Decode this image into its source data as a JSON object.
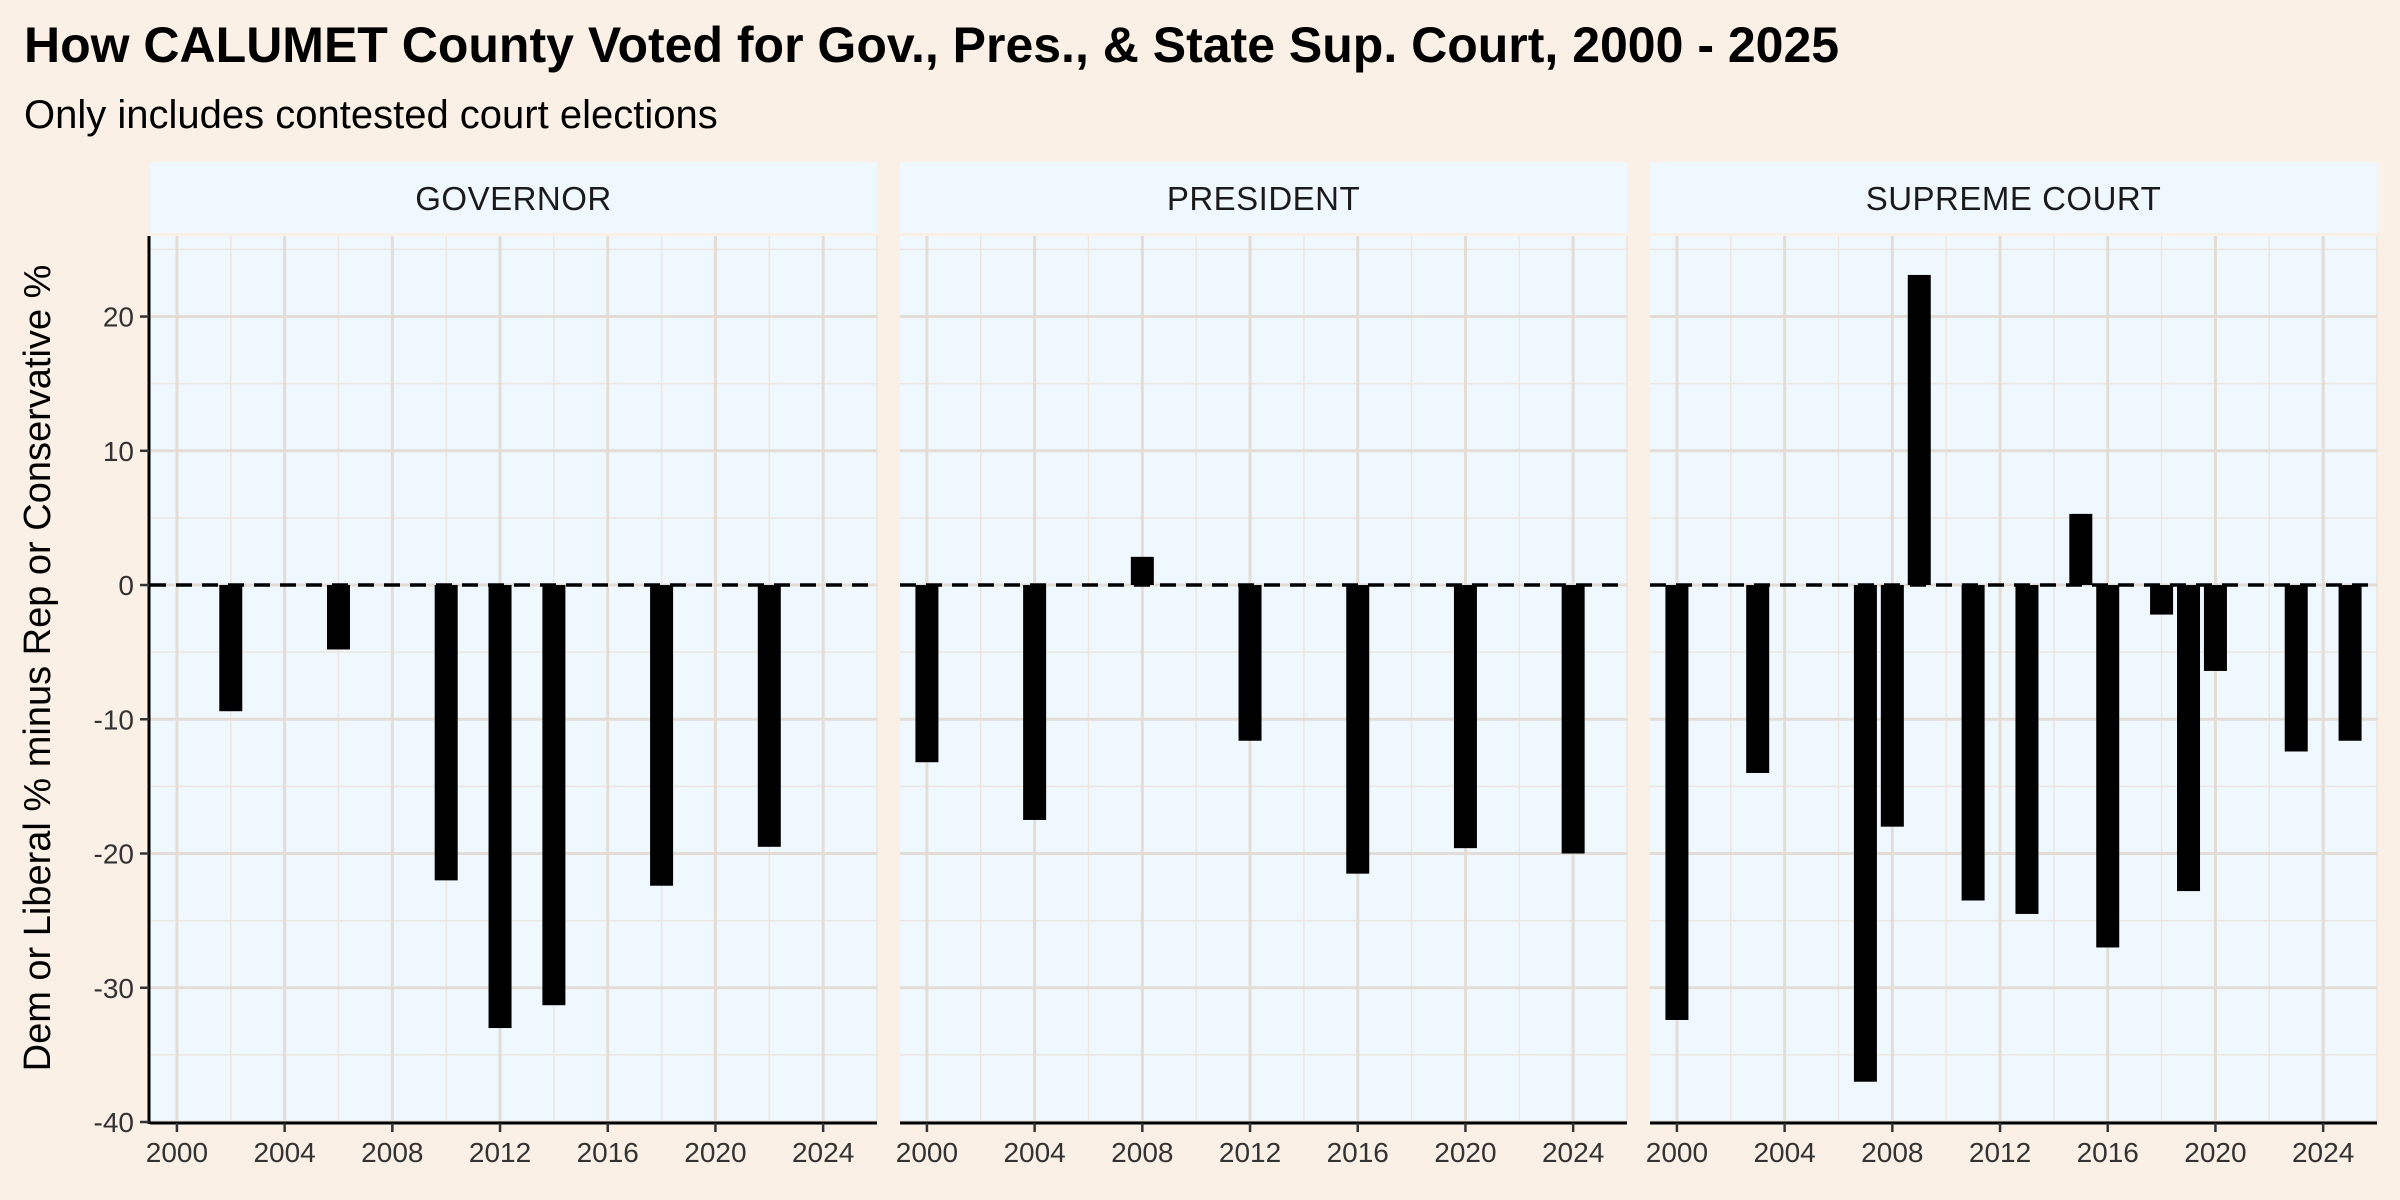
{
  "title": "How CALUMET County Voted for Gov., Pres., & State Sup. Court, 2000 - 2025",
  "subtitle": "Only includes contested court elections",
  "chart_data": {
    "type": "bar",
    "title": "How CALUMET County Voted for Gov., Pres., & State Sup. Court, 2000 - 2025",
    "subtitle": "Only includes contested court elections",
    "ylabel": "Dem or Liberal % minus Rep or Conservative %",
    "xlabel": "",
    "xlim": [
      1999,
      2026
    ],
    "ylim": [
      -40,
      26
    ],
    "x_ticks": [
      2000,
      2004,
      2008,
      2012,
      2016,
      2020,
      2024
    ],
    "y_ticks": [
      -40,
      -30,
      -20,
      -10,
      0,
      10,
      20
    ],
    "reference_line": {
      "y": 0,
      "style": "dashed"
    },
    "grid": true,
    "bar_color": "#000000",
    "panel_background": "#F0F8FF",
    "page_background": "#FBF0E6",
    "panels": [
      {
        "name": "GOVERNOR",
        "x": [
          2002,
          2006,
          2010,
          2012,
          2014,
          2018,
          2022
        ],
        "values": [
          -9.4,
          -4.8,
          -22.0,
          -33.0,
          -31.3,
          -22.4,
          -19.5
        ]
      },
      {
        "name": "PRESIDENT",
        "x": [
          2000,
          2004,
          2008,
          2012,
          2016,
          2020,
          2024
        ],
        "values": [
          -13.2,
          -17.5,
          2.1,
          -11.6,
          -21.5,
          -19.6,
          -20.0
        ]
      },
      {
        "name": "SUPREME COURT",
        "x": [
          2000,
          2003,
          2007,
          2008,
          2009,
          2011,
          2013,
          2015,
          2016,
          2018,
          2019,
          2020,
          2023,
          2025
        ],
        "values": [
          -32.4,
          -14.0,
          -37.0,
          -18.0,
          23.1,
          -23.5,
          -24.5,
          5.3,
          -27.0,
          -2.2,
          -22.8,
          -6.4,
          -12.4,
          -11.6
        ]
      }
    ]
  }
}
